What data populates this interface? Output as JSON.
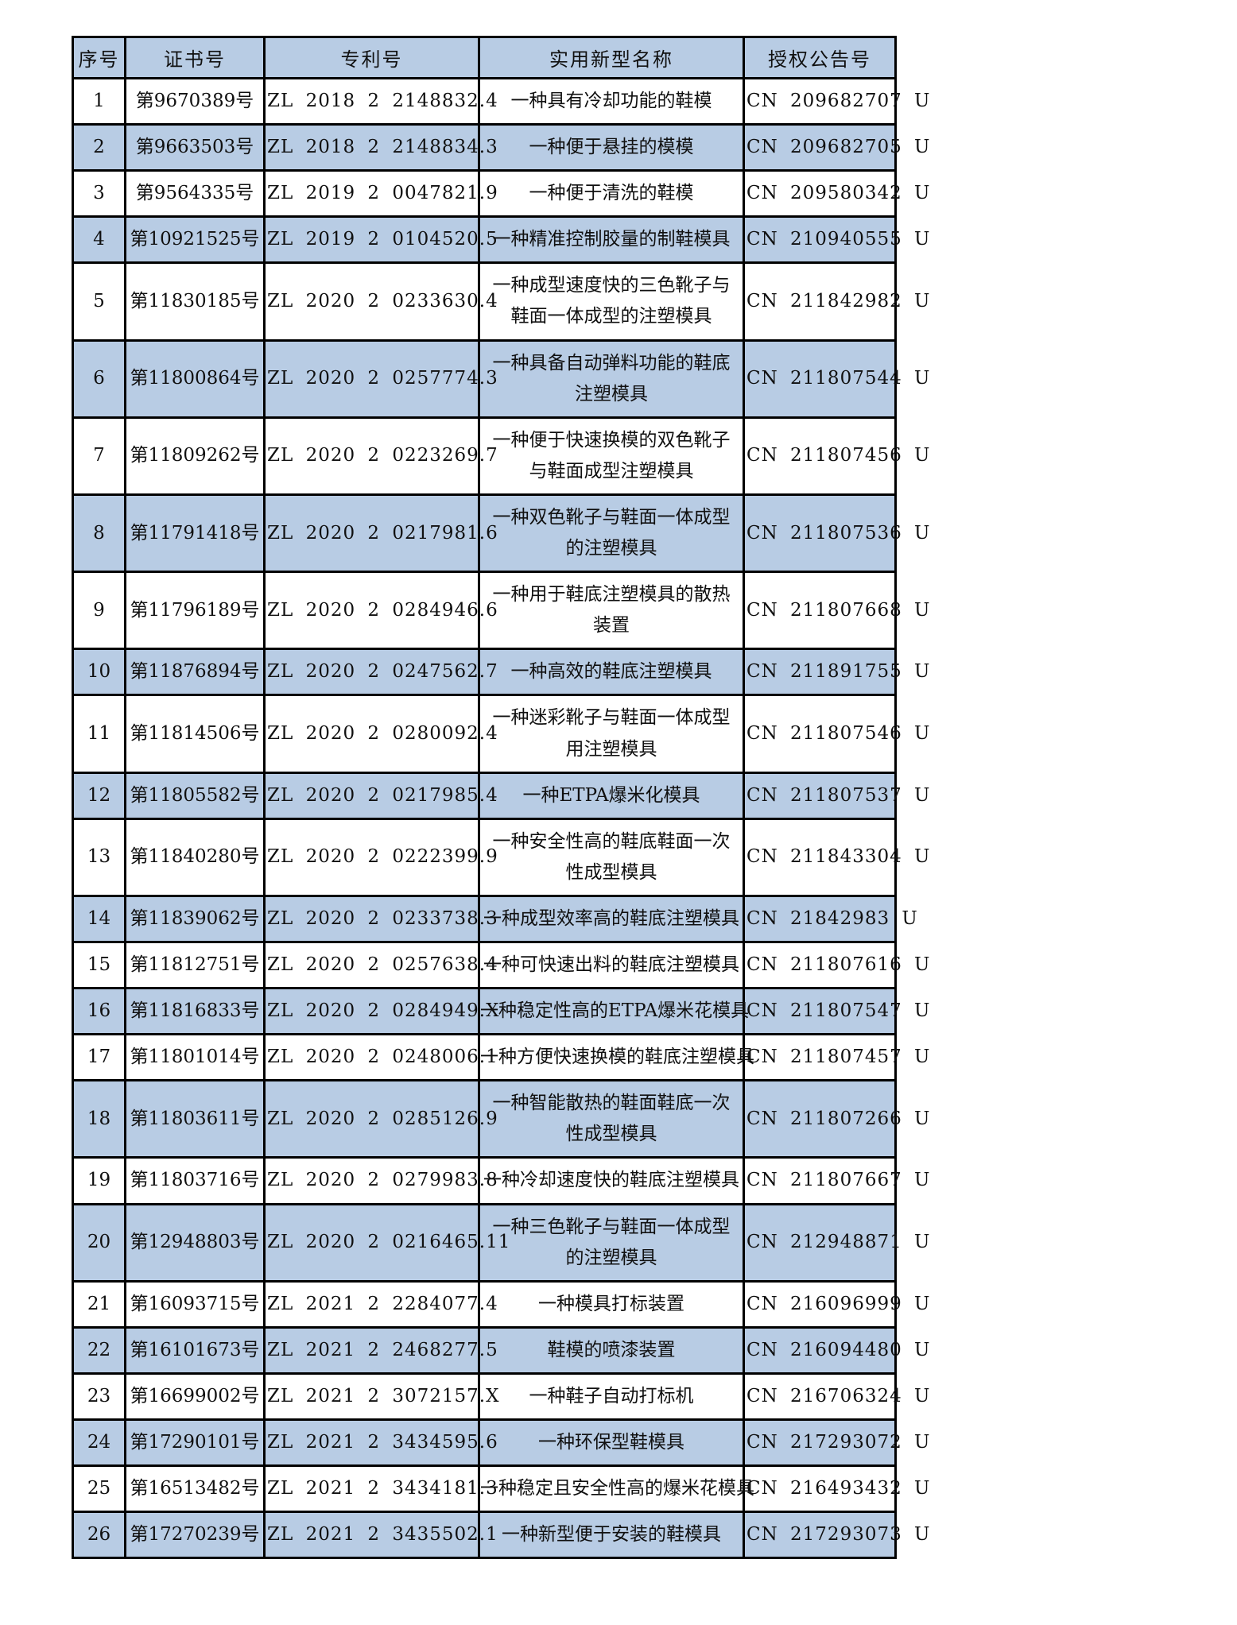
{
  "page": {
    "background": "#ffffff",
    "text_color": "#101010"
  },
  "table": {
    "header_bg": "#b8cce4",
    "alt_row_bg": "#b8cce4",
    "border_color": "#000000",
    "headers": [
      "序号",
      "证书号",
      "专利号",
      "实用新型名称",
      "授权公告号"
    ],
    "rows": [
      [
        "1",
        "第9670389号",
        "ZL 2018 2 2148832.4",
        "一种具有冷却功能的鞋模",
        "CN 209682707 U"
      ],
      [
        "2",
        "第9663503号",
        "ZL 2018 2 2148834.3",
        "一种便于悬挂的模模",
        "CN 209682705 U"
      ],
      [
        "3",
        "第9564335号",
        "ZL 2019 2 0047821.9",
        "一种便于清洗的鞋模",
        "CN 209580342 U"
      ],
      [
        "4",
        "第10921525号",
        "ZL 2019 2 0104520.5",
        "一种精准控制胶量的制鞋模具",
        "CN 210940555 U"
      ],
      [
        "5",
        "第11830185号",
        "ZL 2020 2 0233630.4",
        "一种成型速度快的三色靴子与\n鞋面一体成型的注塑模具",
        "CN 211842982 U"
      ],
      [
        "6",
        "第11800864号",
        "ZL 2020 2 0257774.3",
        "一种具备自动弹料功能的鞋底\n注塑模具",
        "CN 211807544 U"
      ],
      [
        "7",
        "第11809262号",
        "ZL 2020 2 0223269.7",
        "一种便于快速换模的双色靴子\n与鞋面成型注塑模具",
        "CN 211807456 U"
      ],
      [
        "8",
        "第11791418号",
        "ZL 2020 2 0217981.6",
        "一种双色靴子与鞋面一体成型\n的注塑模具",
        "CN 211807536 U"
      ],
      [
        "9",
        "第11796189号",
        "ZL 2020 2 0284946.6",
        "一种用于鞋底注塑模具的散热\n装置",
        "CN 211807668 U"
      ],
      [
        "10",
        "第11876894号",
        "ZL 2020 2 0247562.7",
        "一种高效的鞋底注塑模具",
        "CN 211891755 U"
      ],
      [
        "11",
        "第11814506号",
        "ZL 2020 2 0280092.4",
        "一种迷彩靴子与鞋面一体成型\n用注塑模具",
        "CN 211807546 U"
      ],
      [
        "12",
        "第11805582号",
        "ZL 2020 2 0217985.4",
        "一种ETPA爆米化模具",
        "CN 211807537 U"
      ],
      [
        "13",
        "第11840280号",
        "ZL 2020 2 0222399.9",
        "一种安全性高的鞋底鞋面一次\n性成型模具",
        "CN 211843304 U"
      ],
      [
        "14",
        "第11839062号",
        "ZL 2020 2 0233738.3",
        "一种成型效率高的鞋底注塑模具",
        "CN 21842983 U"
      ],
      [
        "15",
        "第11812751号",
        "ZL 2020 2 0257638.4",
        "一种可快速出料的鞋底注塑模具",
        "CN 211807616 U"
      ],
      [
        "16",
        "第11816833号",
        "ZL 2020 2 0284949.X",
        "一种稳定性高的ETPA爆米花模具",
        "CN 211807547 U"
      ],
      [
        "17",
        "第11801014号",
        "ZL 2020 2 0248006.1",
        "一种方便快速换模的鞋底注塑模具",
        "CN 211807457 U"
      ],
      [
        "18",
        "第11803611号",
        "ZL 2020 2 0285126.9",
        "一种智能散热的鞋面鞋底一次\n性成型模具",
        "CN 211807266 U"
      ],
      [
        "19",
        "第11803716号",
        "ZL 2020 2 0279983.8",
        "一种冷却速度快的鞋底注塑模具",
        "CN 211807667 U"
      ],
      [
        "20",
        "第12948803号",
        "ZL 2020 2 0216465.11",
        "一种三色靴子与鞋面一体成型\n的注塑模具",
        "CN 212948871 U"
      ],
      [
        "21",
        "第16093715号",
        "ZL 2021 2 2284077.4",
        "一种模具打标装置",
        "CN 216096999 U"
      ],
      [
        "22",
        "第16101673号",
        "ZL 2021 2 2468277.5",
        "鞋模的喷漆装置",
        "CN 216094480 U"
      ],
      [
        "23",
        "第16699002号",
        "ZL 2021 2 3072157.X",
        "一种鞋子自动打标机",
        "CN 216706324 U"
      ],
      [
        "24",
        "第17290101号",
        "ZL 2021 2 3434595.6",
        "一种环保型鞋模具",
        "CN 217293072 U"
      ],
      [
        "25",
        "第16513482号",
        "ZL 2021 2 3434181.3",
        "一种稳定且安全性高的爆米花模具",
        "CN 216493432 U"
      ],
      [
        "26",
        "第17270239号",
        "ZL 2021 2 3435502.1",
        "一种新型便于安装的鞋模具",
        "CN 217293073 U"
      ]
    ]
  }
}
